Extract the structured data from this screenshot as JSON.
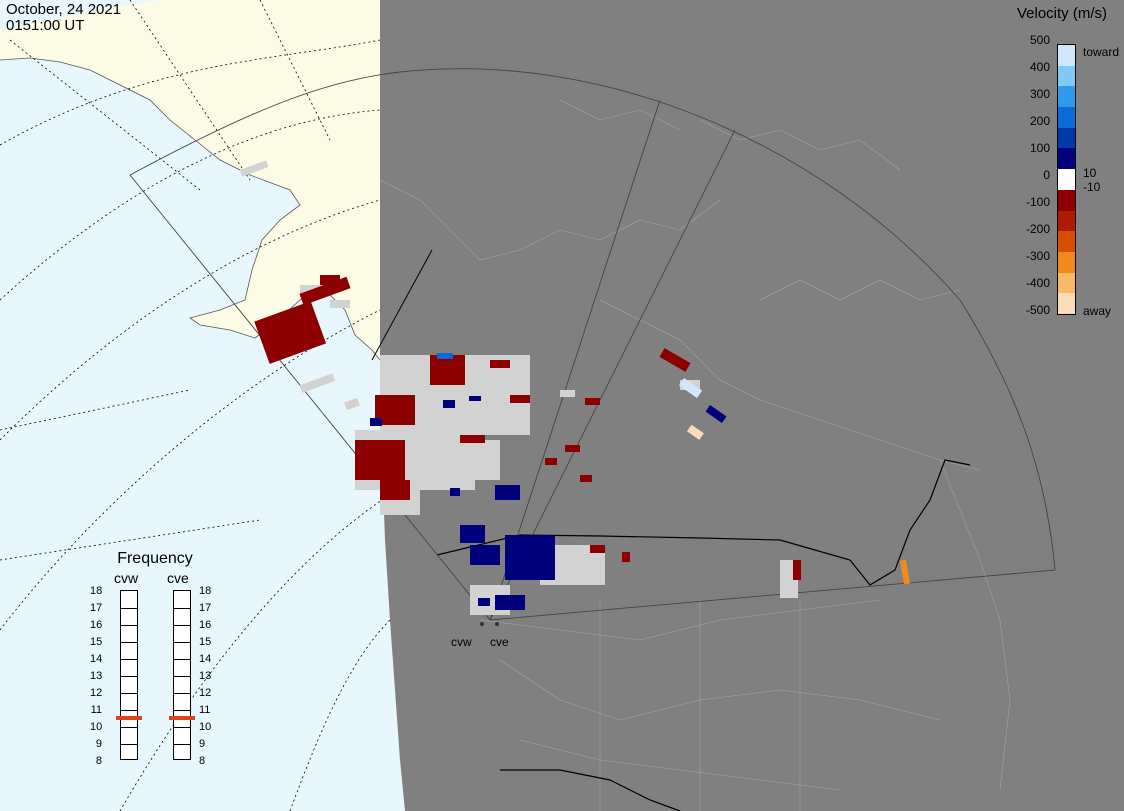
{
  "header": {
    "date": "October, 24 2021",
    "time": "0151:00 UT"
  },
  "legend": {
    "title": "Velocity (m/s)",
    "ticks": [
      "500",
      "400",
      "300",
      "200",
      "100",
      "0",
      "-100",
      "-200",
      "-300",
      "-400",
      "-500"
    ],
    "side_labels": {
      "toward": "toward",
      "plus10": "10",
      "minus10": "-10",
      "away": "away"
    },
    "colors": [
      "#cfe9fb",
      "#7fcbf5",
      "#2e9bea",
      "#0b6bd6",
      "#0338a8",
      "#00007a",
      "#ffffff",
      "#8c0000",
      "#b01a00",
      "#d84e00",
      "#f08a1a",
      "#f8b86a",
      "#fcdcb8"
    ]
  },
  "frequency": {
    "title": "Frequency",
    "radars": [
      {
        "name": "cvw",
        "value": 10.5
      },
      {
        "name": "cve",
        "value": 10.5
      }
    ],
    "scale": [
      "18",
      "17",
      "16",
      "15",
      "14",
      "13",
      "12",
      "11",
      "10",
      "9",
      "8"
    ],
    "min": 8,
    "max": 18
  },
  "sites": [
    "cvw",
    "cve"
  ],
  "colors": {
    "ocean": "#e8f6fe",
    "land": "#fcfbe6",
    "night": "#808080",
    "border": "#b5b5b5",
    "red": "#8c0000",
    "blue": "#00007a",
    "gray": "#d2d2d2"
  }
}
